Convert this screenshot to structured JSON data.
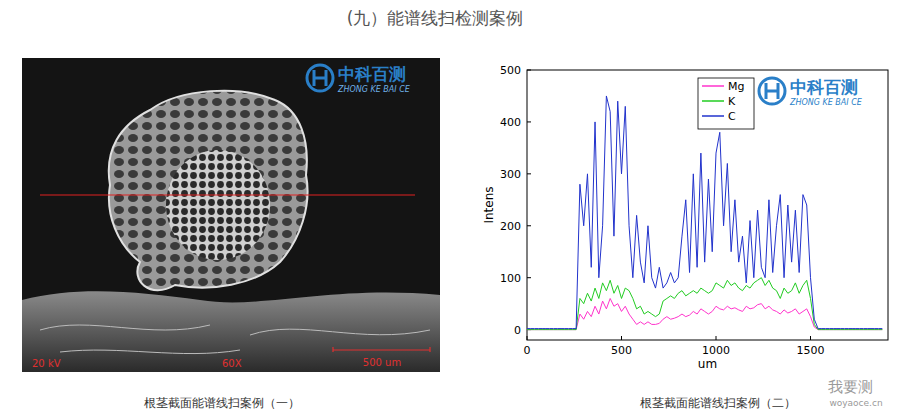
{
  "page": {
    "title": "(九）能谱线扫检测案例",
    "captions": [
      "根茎截面能谱线扫案例（一）",
      "根茎截面能谱线扫案例（二）"
    ],
    "watermark": "我要测",
    "watermark_sub": "woyaoce.cn"
  },
  "logo": {
    "name": "中科百测",
    "sub": "ZHONG KE BAI CE"
  },
  "image": {
    "kv": "20 kV",
    "mag": "60X",
    "scale": "500 um"
  },
  "chart_data": {
    "type": "line",
    "x_label": "um",
    "y_label": "Intens",
    "xlim": [
      0,
      1910
    ],
    "xticks": [
      0,
      500,
      1000,
      1500
    ],
    "ylim": [
      -20,
      500
    ],
    "yticks": [
      0,
      100,
      200,
      300,
      400,
      500
    ],
    "grid": false,
    "legend": "top-right",
    "x": [
      0,
      20,
      40,
      60,
      80,
      100,
      120,
      140,
      160,
      180,
      200,
      220,
      240,
      260,
      280,
      300,
      320,
      340,
      360,
      380,
      400,
      420,
      440,
      460,
      480,
      500,
      520,
      540,
      560,
      580,
      600,
      620,
      640,
      660,
      680,
      700,
      720,
      740,
      760,
      780,
      800,
      820,
      840,
      860,
      880,
      900,
      920,
      940,
      960,
      980,
      1000,
      1020,
      1040,
      1060,
      1080,
      1100,
      1120,
      1140,
      1160,
      1180,
      1200,
      1220,
      1240,
      1260,
      1280,
      1300,
      1320,
      1340,
      1360,
      1380,
      1400,
      1420,
      1440,
      1460,
      1480,
      1500,
      1520,
      1540,
      1560,
      1580,
      1600,
      1620,
      1640,
      1660,
      1680,
      1700,
      1720,
      1740,
      1760,
      1780,
      1800,
      1820,
      1840,
      1860,
      1880
    ],
    "series": [
      {
        "name": "Mg",
        "color": "#ff33cc",
        "values": [
          0,
          0,
          0,
          0,
          0,
          0,
          0,
          0,
          0,
          0,
          0,
          0,
          0,
          0,
          30,
          20,
          35,
          25,
          45,
          30,
          55,
          40,
          60,
          45,
          50,
          35,
          45,
          30,
          20,
          10,
          15,
          10,
          15,
          10,
          10,
          12,
          20,
          25,
          20,
          22,
          25,
          30,
          25,
          28,
          35,
          30,
          40,
          35,
          30,
          35,
          45,
          40,
          38,
          45,
          40,
          42,
          38,
          35,
          45,
          40,
          42,
          48,
          50,
          40,
          45,
          38,
          35,
          30,
          38,
          32,
          35,
          40,
          30,
          35,
          40,
          25,
          5,
          0,
          0,
          0,
          0,
          0,
          0,
          0,
          0,
          0,
          0,
          0,
          0,
          0,
          0,
          0,
          0,
          0,
          0
        ]
      },
      {
        "name": "K",
        "color": "#22cc22",
        "values": [
          0,
          0,
          0,
          0,
          0,
          0,
          0,
          0,
          0,
          0,
          0,
          0,
          0,
          0,
          60,
          50,
          70,
          55,
          80,
          60,
          90,
          75,
          95,
          70,
          85,
          60,
          80,
          75,
          60,
          40,
          45,
          30,
          35,
          30,
          25,
          30,
          55,
          60,
          65,
          60,
          70,
          75,
          65,
          70,
          75,
          70,
          80,
          75,
          70,
          75,
          90,
          85,
          80,
          95,
          85,
          90,
          80,
          75,
          85,
          80,
          90,
          95,
          100,
          85,
          95,
          80,
          75,
          60,
          80,
          70,
          75,
          90,
          70,
          85,
          95,
          60,
          10,
          0,
          0,
          0,
          0,
          0,
          0,
          0,
          0,
          0,
          0,
          0,
          0,
          0,
          0,
          0,
          0,
          0,
          0
        ]
      },
      {
        "name": "C",
        "color": "#2233cc",
        "values": [
          2,
          2,
          2,
          2,
          2,
          2,
          2,
          2,
          2,
          2,
          2,
          2,
          2,
          2,
          280,
          200,
          300,
          120,
          400,
          100,
          200,
          450,
          420,
          180,
          440,
          300,
          430,
          200,
          100,
          220,
          130,
          90,
          200,
          100,
          80,
          120,
          80,
          90,
          110,
          90,
          100,
          180,
          250,
          110,
          300,
          120,
          340,
          130,
          290,
          150,
          340,
          380,
          200,
          320,
          150,
          250,
          130,
          180,
          90,
          210,
          100,
          230,
          120,
          100,
          250,
          110,
          200,
          260,
          100,
          240,
          130,
          230,
          110,
          260,
          240,
          100,
          20,
          2,
          2,
          2,
          2,
          2,
          2,
          2,
          2,
          2,
          2,
          2,
          2,
          2,
          2,
          2,
          2,
          2,
          2
        ]
      }
    ]
  }
}
